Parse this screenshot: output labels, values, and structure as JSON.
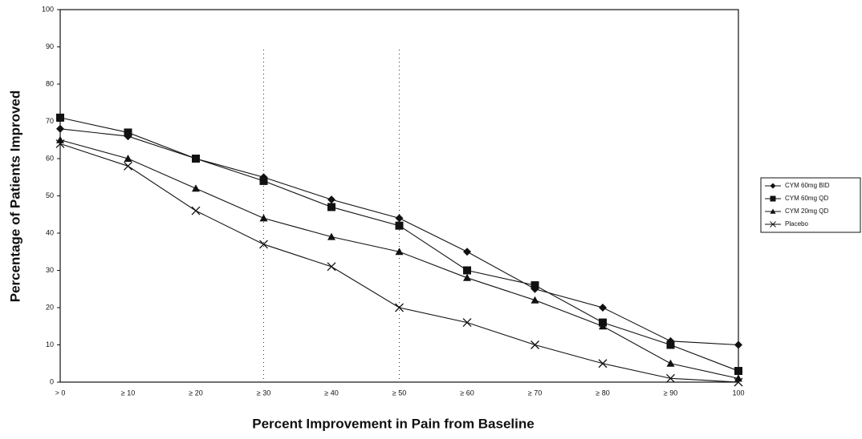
{
  "chart_data": {
    "type": "line",
    "categories": [
      "> 0",
      "≥ 10",
      "≥ 20",
      "≥ 30",
      "≥ 40",
      "≥ 50",
      "≥ 60",
      "≥ 70",
      "≥ 80",
      "≥ 90",
      "100"
    ],
    "series": [
      {
        "name": "CYM 60mg BID",
        "color": "#111111",
        "marker": "diamond",
        "values": [
          68,
          66,
          60,
          55,
          49,
          44,
          35,
          25,
          20,
          11,
          10
        ]
      },
      {
        "name": "CYM 60mg QD",
        "color": "#111111",
        "marker": "square",
        "values": [
          71,
          67,
          60,
          54,
          47,
          42,
          30,
          26,
          16,
          10,
          3
        ]
      },
      {
        "name": "CYM 20mg QD",
        "color": "#111111",
        "marker": "triangle",
        "values": [
          65,
          60,
          52,
          44,
          39,
          35,
          28,
          22,
          15,
          5,
          1
        ]
      },
      {
        "name": "Placebo",
        "color": "#111111",
        "marker": "x",
        "values": [
          64,
          58,
          46,
          37,
          31,
          20,
          16,
          10,
          5,
          1,
          0
        ]
      }
    ],
    "xlabel": "Percent Improvement in Pain from Baseline",
    "ylabel": "Percentage of Patients Improved",
    "ylim": [
      0,
      100
    ],
    "yticks": [
      0,
      10,
      20,
      30,
      40,
      50,
      60,
      70,
      80,
      90,
      100
    ],
    "legend": "right"
  }
}
